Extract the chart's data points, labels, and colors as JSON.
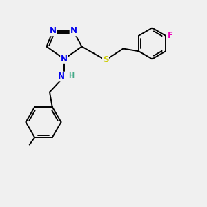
{
  "bg_color": "#f0f0f0",
  "atom_colors": {
    "N": "#0000ee",
    "S": "#cccc00",
    "F": "#ee00bb",
    "H": "#44aa88",
    "C": "#000000"
  },
  "bond_color": "#000000",
  "bond_lw": 1.4,
  "font_size": 8.5,
  "figsize": [
    3.0,
    3.0
  ],
  "dpi": 100,
  "xlim": [
    0,
    10
  ],
  "ylim": [
    0,
    10
  ]
}
